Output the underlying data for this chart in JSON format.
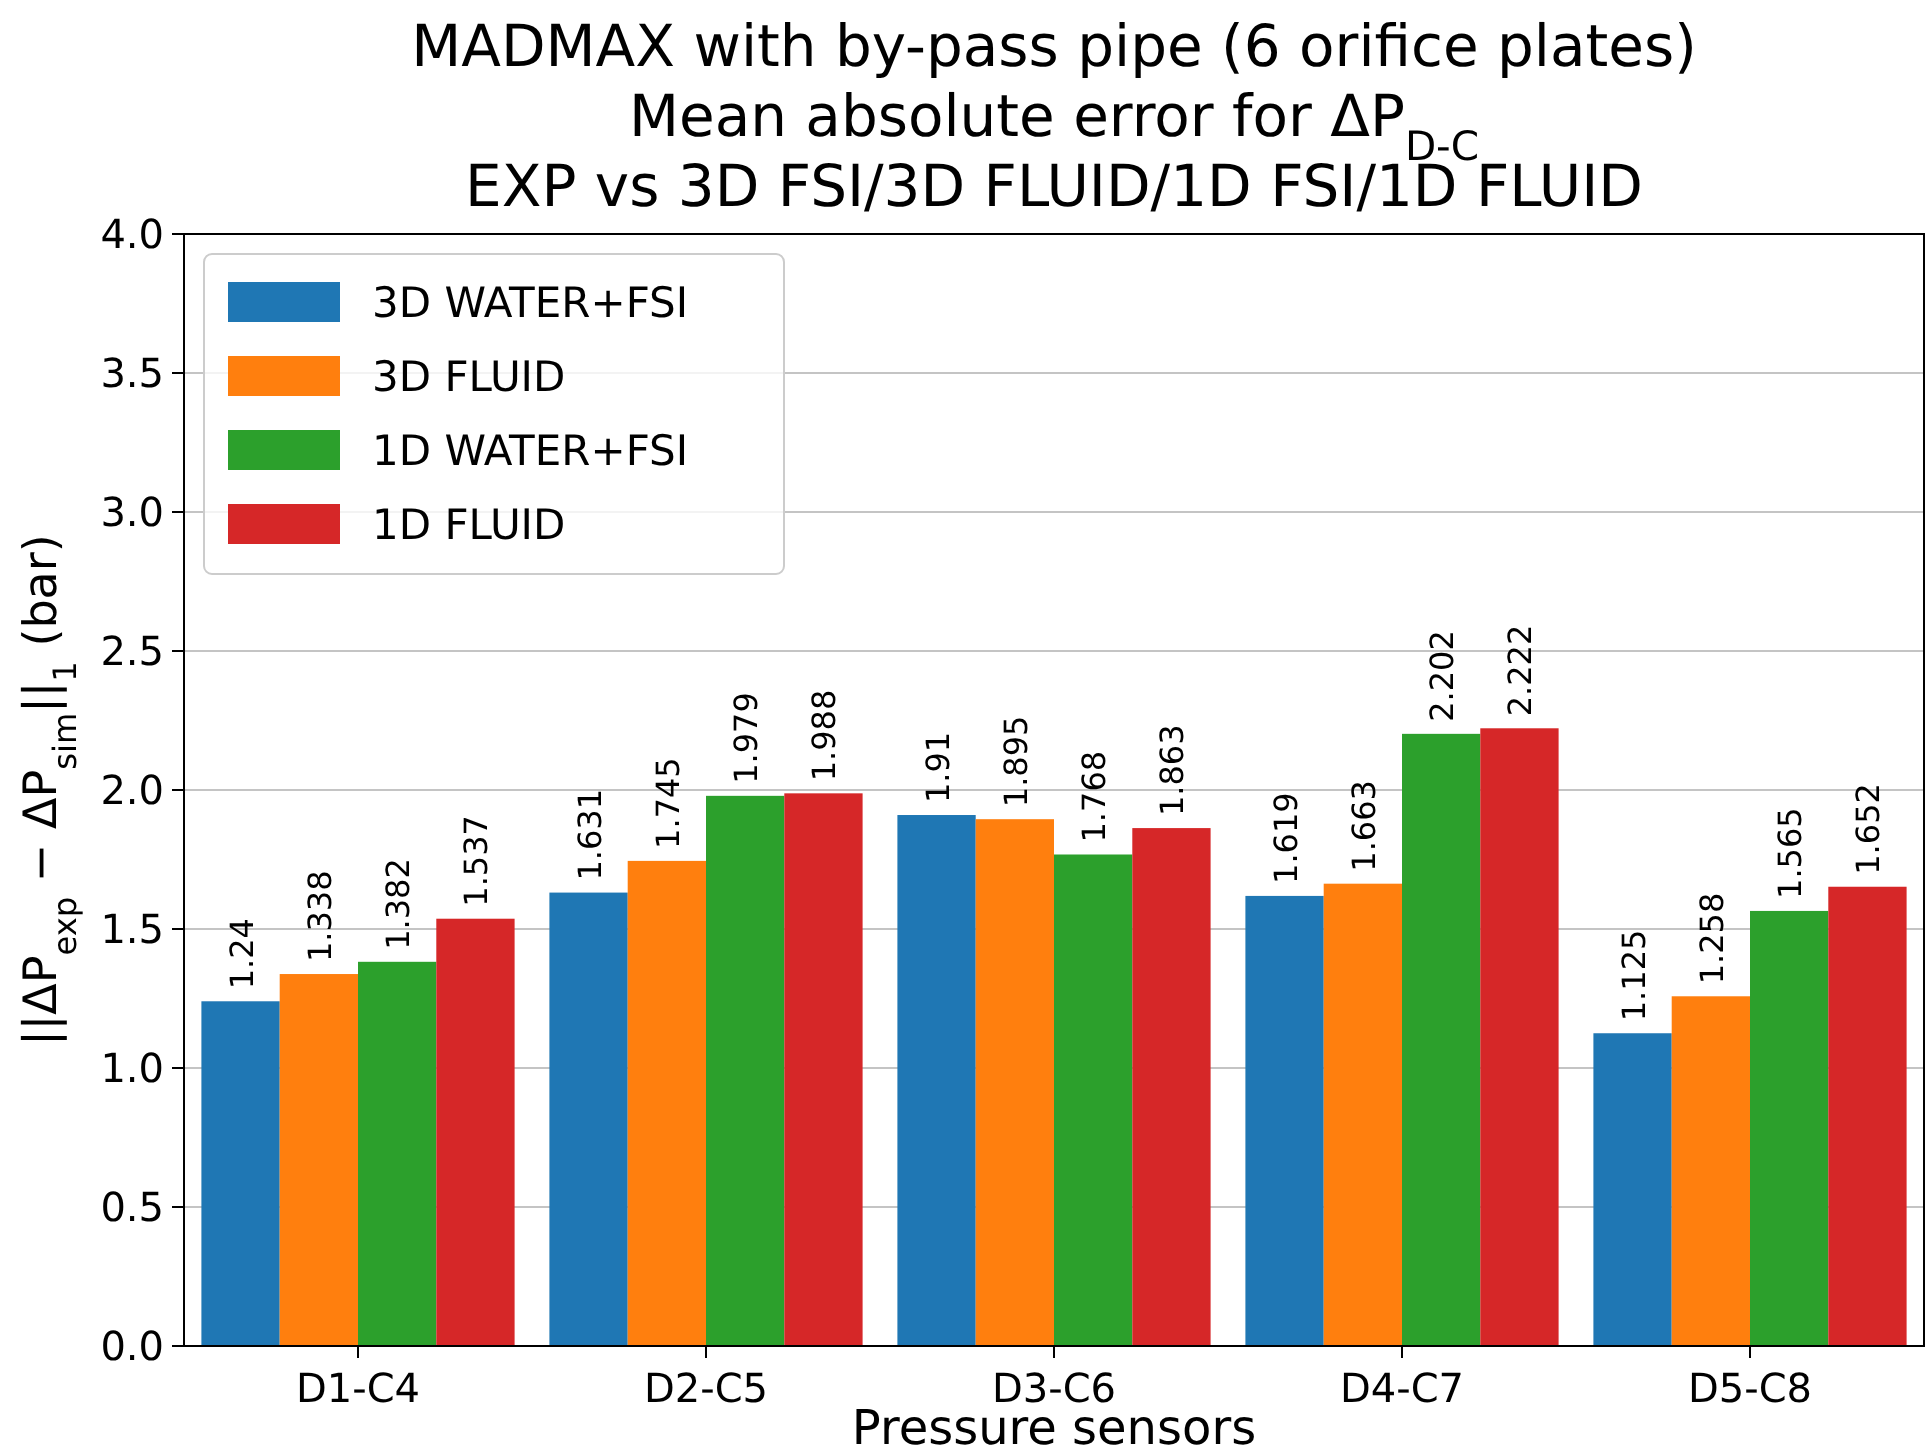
{
  "chart_data": {
    "type": "bar",
    "title": "MADMAX with by-pass pipe (6 orifice plates)\nMean absolute error for ΔP$_{D-C}$\nEXP vs 3D FSI/3D FLUID/1D FSI/1D FLUID",
    "xlabel": "Pressure sensors",
    "ylabel": "||ΔP$_{exp}$ − ΔP$_{sim}$||$_{1}$ (bar)",
    "categories": [
      "D1-C4",
      "D2-C5",
      "D3-C6",
      "D4-C7",
      "D5-C8"
    ],
    "series": [
      {
        "name": "3D WATER+FSI",
        "color": "#1f77b4",
        "values": [
          1.24,
          1.631,
          1.91,
          1.619,
          1.125
        ]
      },
      {
        "name": "3D FLUID",
        "color": "#ff7f0e",
        "values": [
          1.338,
          1.745,
          1.895,
          1.663,
          1.258
        ]
      },
      {
        "name": "1D WATER+FSI",
        "color": "#2ca02c",
        "values": [
          1.382,
          1.979,
          1.768,
          2.202,
          1.565
        ]
      },
      {
        "name": "1D FLUID",
        "color": "#d62728",
        "values": [
          1.537,
          1.988,
          1.863,
          2.222,
          1.652
        ]
      }
    ],
    "ylim": [
      0,
      4
    ],
    "yticks": [
      {
        "value": 0,
        "label": "0.0"
      },
      {
        "value": 0.5,
        "label": "0.5"
      },
      {
        "value": 1,
        "label": "1.0"
      },
      {
        "value": 1.5,
        "label": "1.5"
      },
      {
        "value": 2,
        "label": "2.0"
      },
      {
        "value": 2.5,
        "label": "2.5"
      },
      {
        "value": 3,
        "label": "3.0"
      },
      {
        "value": 3.5,
        "label": "3.5"
      },
      {
        "value": 4,
        "label": "4.0"
      }
    ],
    "grid": "y",
    "legend": "top left",
    "data_labels": true
  }
}
